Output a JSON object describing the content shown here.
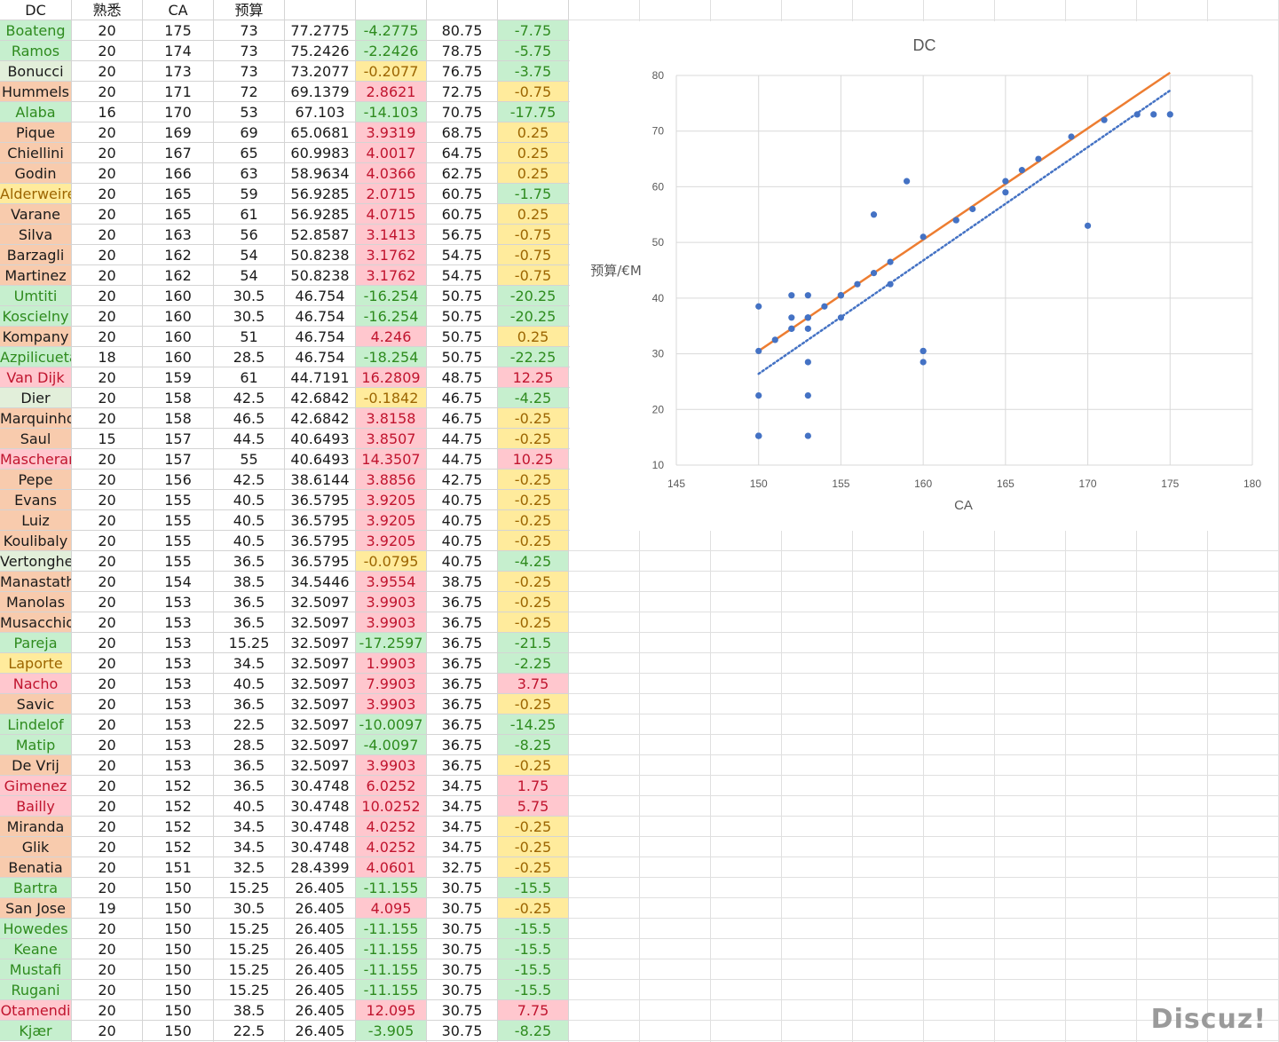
{
  "headers": [
    "DC",
    "熟悉",
    "CA",
    "预算",
    "",
    "",
    "",
    ""
  ],
  "rows": [
    {
      "name": "Boateng",
      "f": "20",
      "ca": "175",
      "b": "73",
      "p": "77.2775",
      "d": "-4.2775",
      "v": "80.75",
      "e": "-7.75",
      "ns": "green",
      "ds": "green",
      "es": "green"
    },
    {
      "name": "Ramos",
      "f": "20",
      "ca": "174",
      "b": "73",
      "p": "75.2426",
      "d": "-2.2426",
      "v": "78.75",
      "e": "-5.75",
      "ns": "green",
      "ds": "green",
      "es": "green"
    },
    {
      "name": "Bonucci",
      "f": "20",
      "ca": "173",
      "b": "73",
      "p": "73.2077",
      "d": "-0.2077",
      "v": "76.75",
      "e": "-3.75",
      "ns": "lgreen",
      "ds": "yellow",
      "es": "green"
    },
    {
      "name": "Hummels",
      "f": "20",
      "ca": "171",
      "b": "72",
      "p": "69.1379",
      "d": "2.8621",
      "v": "72.75",
      "e": "-0.75",
      "ns": "orange",
      "ds": "red",
      "es": "yellow"
    },
    {
      "name": "Alaba",
      "f": "16",
      "ca": "170",
      "b": "53",
      "p": "67.103",
      "d": "-14.103",
      "v": "70.75",
      "e": "-17.75",
      "ns": "green",
      "ds": "green",
      "es": "green"
    },
    {
      "name": "Pique",
      "f": "20",
      "ca": "169",
      "b": "69",
      "p": "65.0681",
      "d": "3.9319",
      "v": "68.75",
      "e": "0.25",
      "ns": "orange",
      "ds": "red",
      "es": "yellow"
    },
    {
      "name": "Chiellini",
      "f": "20",
      "ca": "167",
      "b": "65",
      "p": "60.9983",
      "d": "4.0017",
      "v": "64.75",
      "e": "0.25",
      "ns": "orange",
      "ds": "red",
      "es": "yellow"
    },
    {
      "name": "Godin",
      "f": "20",
      "ca": "166",
      "b": "63",
      "p": "58.9634",
      "d": "4.0366",
      "v": "62.75",
      "e": "0.25",
      "ns": "orange",
      "ds": "red",
      "es": "yellow"
    },
    {
      "name": "Alderweirel",
      "f": "20",
      "ca": "165",
      "b": "59",
      "p": "56.9285",
      "d": "2.0715",
      "v": "60.75",
      "e": "-1.75",
      "ns": "yellow",
      "ds": "red",
      "es": "green"
    },
    {
      "name": "Varane",
      "f": "20",
      "ca": "165",
      "b": "61",
      "p": "56.9285",
      "d": "4.0715",
      "v": "60.75",
      "e": "0.25",
      "ns": "orange",
      "ds": "red",
      "es": "yellow"
    },
    {
      "name": "Silva",
      "f": "20",
      "ca": "163",
      "b": "56",
      "p": "52.8587",
      "d": "3.1413",
      "v": "56.75",
      "e": "-0.75",
      "ns": "orange",
      "ds": "red",
      "es": "yellow"
    },
    {
      "name": "Barzagli",
      "f": "20",
      "ca": "162",
      "b": "54",
      "p": "50.8238",
      "d": "3.1762",
      "v": "54.75",
      "e": "-0.75",
      "ns": "orange",
      "ds": "red",
      "es": "yellow"
    },
    {
      "name": "Martinez",
      "f": "20",
      "ca": "162",
      "b": "54",
      "p": "50.8238",
      "d": "3.1762",
      "v": "54.75",
      "e": "-0.75",
      "ns": "orange",
      "ds": "red",
      "es": "yellow"
    },
    {
      "name": "Umtiti",
      "f": "20",
      "ca": "160",
      "b": "30.5",
      "p": "46.754",
      "d": "-16.254",
      "v": "50.75",
      "e": "-20.25",
      "ns": "green",
      "ds": "green",
      "es": "green"
    },
    {
      "name": "Koscielny",
      "f": "20",
      "ca": "160",
      "b": "30.5",
      "p": "46.754",
      "d": "-16.254",
      "v": "50.75",
      "e": "-20.25",
      "ns": "green",
      "ds": "green",
      "es": "green"
    },
    {
      "name": "Kompany",
      "f": "20",
      "ca": "160",
      "b": "51",
      "p": "46.754",
      "d": "4.246",
      "v": "50.75",
      "e": "0.25",
      "ns": "orange",
      "ds": "red",
      "es": "yellow"
    },
    {
      "name": "Azpilicueta",
      "f": "18",
      "ca": "160",
      "b": "28.5",
      "p": "46.754",
      "d": "-18.254",
      "v": "50.75",
      "e": "-22.25",
      "ns": "green",
      "ds": "green",
      "es": "green"
    },
    {
      "name": "Van Dijk",
      "f": "20",
      "ca": "159",
      "b": "61",
      "p": "44.7191",
      "d": "16.2809",
      "v": "48.75",
      "e": "12.25",
      "ns": "red",
      "ds": "red",
      "es": "red"
    },
    {
      "name": "Dier",
      "f": "20",
      "ca": "158",
      "b": "42.5",
      "p": "42.6842",
      "d": "-0.1842",
      "v": "46.75",
      "e": "-4.25",
      "ns": "lgreen",
      "ds": "yellow",
      "es": "green"
    },
    {
      "name": "Marquinhos",
      "f": "20",
      "ca": "158",
      "b": "46.5",
      "p": "42.6842",
      "d": "3.8158",
      "v": "46.75",
      "e": "-0.25",
      "ns": "orange",
      "ds": "red",
      "es": "yellow"
    },
    {
      "name": "Saul",
      "f": "15",
      "ca": "157",
      "b": "44.5",
      "p": "40.6493",
      "d": "3.8507",
      "v": "44.75",
      "e": "-0.25",
      "ns": "orange",
      "ds": "red",
      "es": "yellow"
    },
    {
      "name": "Mascherano",
      "f": "20",
      "ca": "157",
      "b": "55",
      "p": "40.6493",
      "d": "14.3507",
      "v": "44.75",
      "e": "10.25",
      "ns": "red",
      "ds": "red",
      "es": "red"
    },
    {
      "name": "Pepe",
      "f": "20",
      "ca": "156",
      "b": "42.5",
      "p": "38.6144",
      "d": "3.8856",
      "v": "42.75",
      "e": "-0.25",
      "ns": "orange",
      "ds": "red",
      "es": "yellow"
    },
    {
      "name": "Evans",
      "f": "20",
      "ca": "155",
      "b": "40.5",
      "p": "36.5795",
      "d": "3.9205",
      "v": "40.75",
      "e": "-0.25",
      "ns": "orange",
      "ds": "red",
      "es": "yellow"
    },
    {
      "name": "Luiz",
      "f": "20",
      "ca": "155",
      "b": "40.5",
      "p": "36.5795",
      "d": "3.9205",
      "v": "40.75",
      "e": "-0.25",
      "ns": "orange",
      "ds": "red",
      "es": "yellow"
    },
    {
      "name": "Koulibaly",
      "f": "20",
      "ca": "155",
      "b": "40.5",
      "p": "36.5795",
      "d": "3.9205",
      "v": "40.75",
      "e": "-0.25",
      "ns": "orange",
      "ds": "red",
      "es": "yellow"
    },
    {
      "name": "Vertonghen",
      "f": "20",
      "ca": "155",
      "b": "36.5",
      "p": "36.5795",
      "d": "-0.0795",
      "v": "40.75",
      "e": "-4.25",
      "ns": "lgreen",
      "ds": "yellow",
      "es": "green"
    },
    {
      "name": "Manastathopoulos",
      "f": "20",
      "ca": "154",
      "b": "38.5",
      "p": "34.5446",
      "d": "3.9554",
      "v": "38.75",
      "e": "-0.25",
      "ns": "orange",
      "ds": "red",
      "es": "yellow"
    },
    {
      "name": "Manolas",
      "f": "20",
      "ca": "153",
      "b": "36.5",
      "p": "32.5097",
      "d": "3.9903",
      "v": "36.75",
      "e": "-0.25",
      "ns": "orange",
      "ds": "red",
      "es": "yellow"
    },
    {
      "name": "Musacchio",
      "f": "20",
      "ca": "153",
      "b": "36.5",
      "p": "32.5097",
      "d": "3.9903",
      "v": "36.75",
      "e": "-0.25",
      "ns": "orange",
      "ds": "red",
      "es": "yellow"
    },
    {
      "name": "Pareja",
      "f": "20",
      "ca": "153",
      "b": "15.25",
      "p": "32.5097",
      "d": "-17.2597",
      "v": "36.75",
      "e": "-21.5",
      "ns": "green",
      "ds": "green",
      "es": "green"
    },
    {
      "name": "Laporte",
      "f": "20",
      "ca": "153",
      "b": "34.5",
      "p": "32.5097",
      "d": "1.9903",
      "v": "36.75",
      "e": "-2.25",
      "ns": "yellow",
      "ds": "red",
      "es": "green"
    },
    {
      "name": "Nacho",
      "f": "20",
      "ca": "153",
      "b": "40.5",
      "p": "32.5097",
      "d": "7.9903",
      "v": "36.75",
      "e": "3.75",
      "ns": "red",
      "ds": "red",
      "es": "red"
    },
    {
      "name": "Savic",
      "f": "20",
      "ca": "153",
      "b": "36.5",
      "p": "32.5097",
      "d": "3.9903",
      "v": "36.75",
      "e": "-0.25",
      "ns": "orange",
      "ds": "red",
      "es": "yellow"
    },
    {
      "name": "Lindelof",
      "f": "20",
      "ca": "153",
      "b": "22.5",
      "p": "32.5097",
      "d": "-10.0097",
      "v": "36.75",
      "e": "-14.25",
      "ns": "green",
      "ds": "green",
      "es": "green"
    },
    {
      "name": "Matip",
      "f": "20",
      "ca": "153",
      "b": "28.5",
      "p": "32.5097",
      "d": "-4.0097",
      "v": "36.75",
      "e": "-8.25",
      "ns": "green",
      "ds": "green",
      "es": "green"
    },
    {
      "name": "De Vrij",
      "f": "20",
      "ca": "153",
      "b": "36.5",
      "p": "32.5097",
      "d": "3.9903",
      "v": "36.75",
      "e": "-0.25",
      "ns": "orange",
      "ds": "red",
      "es": "yellow"
    },
    {
      "name": "Gimenez",
      "f": "20",
      "ca": "152",
      "b": "36.5",
      "p": "30.4748",
      "d": "6.0252",
      "v": "34.75",
      "e": "1.75",
      "ns": "red",
      "ds": "red",
      "es": "red"
    },
    {
      "name": "Bailly",
      "f": "20",
      "ca": "152",
      "b": "40.5",
      "p": "30.4748",
      "d": "10.0252",
      "v": "34.75",
      "e": "5.75",
      "ns": "red",
      "ds": "red",
      "es": "red"
    },
    {
      "name": "Miranda",
      "f": "20",
      "ca": "152",
      "b": "34.5",
      "p": "30.4748",
      "d": "4.0252",
      "v": "34.75",
      "e": "-0.25",
      "ns": "orange",
      "ds": "red",
      "es": "yellow"
    },
    {
      "name": "Glik",
      "f": "20",
      "ca": "152",
      "b": "34.5",
      "p": "30.4748",
      "d": "4.0252",
      "v": "34.75",
      "e": "-0.25",
      "ns": "orange",
      "ds": "red",
      "es": "yellow"
    },
    {
      "name": "Benatia",
      "f": "20",
      "ca": "151",
      "b": "32.5",
      "p": "28.4399",
      "d": "4.0601",
      "v": "32.75",
      "e": "-0.25",
      "ns": "orange",
      "ds": "red",
      "es": "yellow"
    },
    {
      "name": "Bartra",
      "f": "20",
      "ca": "150",
      "b": "15.25",
      "p": "26.405",
      "d": "-11.155",
      "v": "30.75",
      "e": "-15.5",
      "ns": "green",
      "ds": "green",
      "es": "green"
    },
    {
      "name": "San Jose",
      "f": "19",
      "ca": "150",
      "b": "30.5",
      "p": "26.405",
      "d": "4.095",
      "v": "30.75",
      "e": "-0.25",
      "ns": "orange",
      "ds": "red",
      "es": "yellow"
    },
    {
      "name": "Howedes",
      "f": "20",
      "ca": "150",
      "b": "15.25",
      "p": "26.405",
      "d": "-11.155",
      "v": "30.75",
      "e": "-15.5",
      "ns": "green",
      "ds": "green",
      "es": "green"
    },
    {
      "name": "Keane",
      "f": "20",
      "ca": "150",
      "b": "15.25",
      "p": "26.405",
      "d": "-11.155",
      "v": "30.75",
      "e": "-15.5",
      "ns": "green",
      "ds": "green",
      "es": "green"
    },
    {
      "name": "Mustafi",
      "f": "20",
      "ca": "150",
      "b": "15.25",
      "p": "26.405",
      "d": "-11.155",
      "v": "30.75",
      "e": "-15.5",
      "ns": "green",
      "ds": "green",
      "es": "green"
    },
    {
      "name": "Rugani",
      "f": "20",
      "ca": "150",
      "b": "15.25",
      "p": "26.405",
      "d": "-11.155",
      "v": "30.75",
      "e": "-15.5",
      "ns": "green",
      "ds": "green",
      "es": "green"
    },
    {
      "name": "Otamendi",
      "f": "20",
      "ca": "150",
      "b": "38.5",
      "p": "26.405",
      "d": "12.095",
      "v": "30.75",
      "e": "7.75",
      "ns": "red",
      "ds": "red",
      "es": "red"
    },
    {
      "name": "Kjær",
      "f": "20",
      "ca": "150",
      "b": "22.5",
      "p": "26.405",
      "d": "-3.905",
      "v": "30.75",
      "e": "-8.25",
      "ns": "green",
      "ds": "green",
      "es": "green"
    }
  ],
  "chart_data": {
    "type": "scatter",
    "title": "DC",
    "xlabel": "CA",
    "ylabel": "预算/€M",
    "xlim": [
      145,
      180
    ],
    "ylim": [
      10,
      80
    ],
    "xticks": [
      145,
      150,
      155,
      160,
      165,
      170,
      175,
      180
    ],
    "yticks": [
      10,
      20,
      30,
      40,
      50,
      60,
      70,
      80
    ],
    "grid": true,
    "legend": "none",
    "points": [
      [
        175,
        73
      ],
      [
        174,
        73
      ],
      [
        173,
        73
      ],
      [
        171,
        72
      ],
      [
        170,
        53
      ],
      [
        169,
        69
      ],
      [
        167,
        65
      ],
      [
        166,
        63
      ],
      [
        165,
        59
      ],
      [
        165,
        61
      ],
      [
        163,
        56
      ],
      [
        162,
        54
      ],
      [
        162,
        54
      ],
      [
        160,
        30.5
      ],
      [
        160,
        30.5
      ],
      [
        160,
        51
      ],
      [
        160,
        28.5
      ],
      [
        159,
        61
      ],
      [
        158,
        42.5
      ],
      [
        158,
        46.5
      ],
      [
        157,
        44.5
      ],
      [
        157,
        55
      ],
      [
        156,
        42.5
      ],
      [
        155,
        40.5
      ],
      [
        155,
        40.5
      ],
      [
        155,
        40.5
      ],
      [
        155,
        36.5
      ],
      [
        154,
        38.5
      ],
      [
        153,
        36.5
      ],
      [
        153,
        36.5
      ],
      [
        153,
        15.25
      ],
      [
        153,
        34.5
      ],
      [
        153,
        40.5
      ],
      [
        153,
        36.5
      ],
      [
        153,
        22.5
      ],
      [
        153,
        28.5
      ],
      [
        153,
        36.5
      ],
      [
        152,
        36.5
      ],
      [
        152,
        40.5
      ],
      [
        152,
        34.5
      ],
      [
        152,
        34.5
      ],
      [
        151,
        32.5
      ],
      [
        150,
        15.25
      ],
      [
        150,
        30.5
      ],
      [
        150,
        15.25
      ],
      [
        150,
        15.25
      ],
      [
        150,
        15.25
      ],
      [
        150,
        15.25
      ],
      [
        150,
        38.5
      ],
      [
        150,
        22.5
      ]
    ],
    "fit_line": {
      "x1": 150,
      "y1": 30.5,
      "x2": 175,
      "y2": 80.5
    },
    "trend_line": {
      "x1": 150,
      "y1": 26.4,
      "x2": 175,
      "y2": 77.3
    },
    "colors": {
      "points": "#4472c4",
      "fit_line": "#ed7d31",
      "trend_line": "#4472c4"
    }
  },
  "watermark": "Discuz!"
}
